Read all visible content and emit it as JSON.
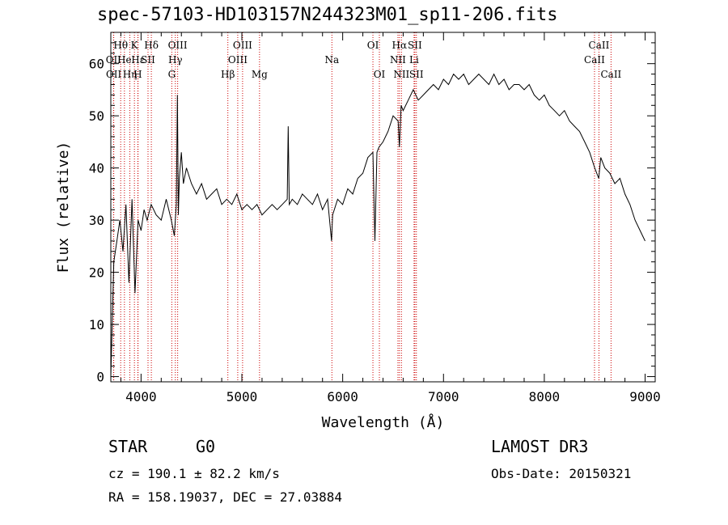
{
  "title": "spec-57103-HD103157N244323M01_sp11-206.fits",
  "chart_data": {
    "type": "line",
    "xlabel": "Wavelength (Å)",
    "ylabel": "Flux (relative)",
    "xlim": [
      3700,
      9100
    ],
    "ylim": [
      -1,
      66
    ],
    "xticks": [
      4000,
      5000,
      6000,
      7000,
      8000,
      9000
    ],
    "yticks": [
      0,
      10,
      20,
      30,
      40,
      50,
      60
    ],
    "series": [
      {
        "name": "spectrum",
        "x": [
          3700,
          3730,
          3760,
          3790,
          3820,
          3850,
          3880,
          3910,
          3940,
          3970,
          4000,
          4030,
          4060,
          4100,
          4150,
          4200,
          4250,
          4300,
          4330,
          4350,
          4360,
          4370,
          4380,
          4400,
          4420,
          4450,
          4500,
          4550,
          4600,
          4650,
          4700,
          4750,
          4800,
          4850,
          4900,
          4950,
          5000,
          5050,
          5100,
          5150,
          5200,
          5250,
          5300,
          5350,
          5400,
          5450,
          5460,
          5470,
          5500,
          5550,
          5600,
          5650,
          5700,
          5750,
          5800,
          5850,
          5890,
          5900,
          5950,
          6000,
          6050,
          6100,
          6150,
          6200,
          6250,
          6300,
          6320,
          6340,
          6360,
          6400,
          6450,
          6500,
          6550,
          6563,
          6580,
          6600,
          6650,
          6700,
          6750,
          6800,
          6850,
          6900,
          6950,
          7000,
          7050,
          7100,
          7150,
          7200,
          7250,
          7300,
          7350,
          7400,
          7450,
          7500,
          7550,
          7600,
          7650,
          7700,
          7750,
          7800,
          7850,
          7900,
          7950,
          8000,
          8050,
          8100,
          8150,
          8200,
          8250,
          8300,
          8350,
          8400,
          8450,
          8500,
          8540,
          8560,
          8600,
          8650,
          8700,
          8750,
          8800,
          8850,
          8900,
          8950,
          9000
        ],
        "y": [
          0,
          22,
          26,
          30,
          24,
          33,
          18,
          34,
          16,
          30,
          28,
          32,
          30,
          33,
          31,
          30,
          34,
          30,
          27,
          33,
          54,
          31,
          38,
          43,
          37,
          40,
          37,
          35,
          37,
          34,
          35,
          36,
          33,
          34,
          33,
          35,
          32,
          33,
          32,
          33,
          31,
          32,
          33,
          32,
          33,
          34,
          48,
          33,
          34,
          33,
          35,
          34,
          33,
          35,
          32,
          34,
          26,
          31,
          34,
          33,
          36,
          35,
          38,
          39,
          42,
          43,
          26,
          43,
          44,
          45,
          47,
          50,
          49,
          44,
          52,
          51,
          53,
          55,
          53,
          54,
          55,
          56,
          55,
          57,
          56,
          58,
          57,
          58,
          56,
          57,
          58,
          57,
          56,
          58,
          56,
          57,
          55,
          56,
          56,
          55,
          56,
          54,
          53,
          54,
          52,
          51,
          50,
          51,
          49,
          48,
          47,
          45,
          43,
          40,
          38,
          42,
          40,
          39,
          37,
          38,
          35,
          33,
          30,
          28,
          26
        ]
      }
    ],
    "lines": [
      {
        "label": "Hθ",
        "x": 3798,
        "row": 0
      },
      {
        "label": "OII",
        "x": 3727,
        "row": 1
      },
      {
        "label": "OII",
        "x": 3729,
        "row": 2
      },
      {
        "label": "He",
        "x": 3835,
        "row": 1
      },
      {
        "label": "Hη",
        "x": 3889,
        "row": 2
      },
      {
        "label": "K",
        "x": 3934,
        "row": 0
      },
      {
        "label": "Hε",
        "x": 3970,
        "row": 1
      },
      {
        "label": "H",
        "x": 3968,
        "row": 2
      },
      {
        "label": "SII",
        "x": 4069,
        "row": 1
      },
      {
        "label": "Hδ",
        "x": 4102,
        "row": 0
      },
      {
        "label": "OIII",
        "x": 4363,
        "row": 0
      },
      {
        "label": "Hγ",
        "x": 4340,
        "row": 1
      },
      {
        "label": "G",
        "x": 4305,
        "row": 2
      },
      {
        "label": "Hβ",
        "x": 4861,
        "row": 2
      },
      {
        "label": "OIII",
        "x": 5007,
        "row": 0
      },
      {
        "label": "OIII",
        "x": 4959,
        "row": 1
      },
      {
        "label": "Mg",
        "x": 5175,
        "row": 2
      },
      {
        "label": "Na",
        "x": 5893,
        "row": 1
      },
      {
        "label": "OI",
        "x": 6300,
        "row": 0
      },
      {
        "label": "OI",
        "x": 6364,
        "row": 2
      },
      {
        "label": "Hα",
        "x": 6563,
        "row": 0
      },
      {
        "label": "NII",
        "x": 6548,
        "row": 1
      },
      {
        "label": "NII",
        "x": 6583,
        "row": 2
      },
      {
        "label": "SII",
        "x": 6716,
        "row": 0
      },
      {
        "label": "Li",
        "x": 6708,
        "row": 1
      },
      {
        "label": "SII",
        "x": 6731,
        "row": 2
      },
      {
        "label": "CaII",
        "x": 8542,
        "row": 0
      },
      {
        "label": "CaII",
        "x": 8498,
        "row": 1
      },
      {
        "label": "CaII",
        "x": 8662,
        "row": 2
      }
    ]
  },
  "info": {
    "object_class": "STAR",
    "subclass": "G0",
    "survey": "LAMOST DR3",
    "redshift": "cz = 190.1 ± 82.2 km/s",
    "obs_date": "Obs-Date: 20150321",
    "coords": "RA = 158.19037, DEC =  27.03884"
  },
  "colors": {
    "line_marker": "#cc0000",
    "spectrum": "#000000",
    "axis": "#000000"
  }
}
